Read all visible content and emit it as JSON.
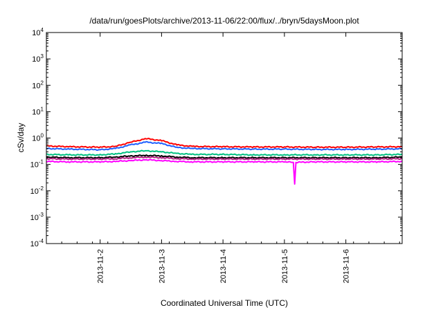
{
  "chart_data": {
    "type": "line",
    "title": "/data/run/goesPlots/archive/2013-11-06/22:00/flux/../bryn/5daysMoon.plot",
    "xlabel": "Coordinated Universal Time (UTC)",
    "ylabel": "cSv/day",
    "yscale": "log",
    "ylim": [
      0.0001,
      10000
    ],
    "xlim": [
      "2013-11-01T03:00",
      "2013-11-06T22:00"
    ],
    "grid": false,
    "legend": "none",
    "x_ticks": [
      {
        "date": "2013-11-02T00:00",
        "label": "2013-11-2"
      },
      {
        "date": "2013-11-03T00:00",
        "label": "2013-11-3"
      },
      {
        "date": "2013-11-04T00:00",
        "label": "2013-11-4"
      },
      {
        "date": "2013-11-05T00:00",
        "label": "2013-11-5"
      },
      {
        "date": "2013-11-06T00:00",
        "label": "2013-11-6"
      }
    ],
    "y_ticks": [
      {
        "value": 0.0001,
        "base": "10",
        "exp": "-4"
      },
      {
        "value": 0.001,
        "base": "10",
        "exp": "-3"
      },
      {
        "value": 0.01,
        "base": "10",
        "exp": "-2"
      },
      {
        "value": 0.1,
        "base": "10",
        "exp": "-1"
      },
      {
        "value": 1,
        "base": "10",
        "exp": "0"
      },
      {
        "value": 10,
        "base": "10",
        "exp": "1"
      },
      {
        "value": 100,
        "base": "10",
        "exp": "2"
      },
      {
        "value": 1000,
        "base": "10",
        "exp": "3"
      },
      {
        "value": 10000,
        "base": "10",
        "exp": "4"
      }
    ],
    "series": [
      {
        "color": "#ff0000",
        "x": [
          "2013-11-01T03:00",
          "2013-11-01T12:00",
          "2013-11-02T00:00",
          "2013-11-02T06:00",
          "2013-11-02T12:00",
          "2013-11-02T18:00",
          "2013-11-03T00:00",
          "2013-11-03T06:00",
          "2013-11-03T12:00",
          "2013-11-04T00:00",
          "2013-11-04T12:00",
          "2013-11-05T00:00",
          "2013-11-05T12:00",
          "2013-11-06T00:00",
          "2013-11-06T12:00",
          "2013-11-06T22:00"
        ],
        "values": [
          0.5,
          0.47,
          0.45,
          0.48,
          0.7,
          0.95,
          0.8,
          0.55,
          0.48,
          0.47,
          0.46,
          0.46,
          0.45,
          0.45,
          0.46,
          0.47
        ]
      },
      {
        "color": "#1f5fff",
        "x": [
          "2013-11-01T03:00",
          "2013-11-01T12:00",
          "2013-11-02T00:00",
          "2013-11-02T06:00",
          "2013-11-02T12:00",
          "2013-11-02T18:00",
          "2013-11-03T00:00",
          "2013-11-03T06:00",
          "2013-11-03T12:00",
          "2013-11-04T00:00",
          "2013-11-04T12:00",
          "2013-11-05T00:00",
          "2013-11-05T12:00",
          "2013-11-06T00:00",
          "2013-11-06T12:00",
          "2013-11-06T22:00"
        ],
        "values": [
          0.4,
          0.38,
          0.36,
          0.4,
          0.55,
          0.7,
          0.62,
          0.44,
          0.4,
          0.39,
          0.38,
          0.38,
          0.37,
          0.37,
          0.38,
          0.39
        ]
      },
      {
        "color": "#00c080",
        "x": [
          "2013-11-01T03:00",
          "2013-11-01T12:00",
          "2013-11-02T00:00",
          "2013-11-02T06:00",
          "2013-11-02T12:00",
          "2013-11-02T18:00",
          "2013-11-03T00:00",
          "2013-11-03T06:00",
          "2013-11-03T12:00",
          "2013-11-04T00:00",
          "2013-11-04T12:00",
          "2013-11-05T00:00",
          "2013-11-05T12:00",
          "2013-11-06T00:00",
          "2013-11-06T12:00",
          "2013-11-06T22:00"
        ],
        "values": [
          0.24,
          0.23,
          0.23,
          0.25,
          0.3,
          0.33,
          0.3,
          0.26,
          0.24,
          0.24,
          0.23,
          0.23,
          0.23,
          0.23,
          0.23,
          0.24
        ]
      },
      {
        "color": "#000000",
        "x": [
          "2013-11-01T03:00",
          "2013-11-01T12:00",
          "2013-11-02T00:00",
          "2013-11-02T06:00",
          "2013-11-02T12:00",
          "2013-11-02T18:00",
          "2013-11-03T00:00",
          "2013-11-03T06:00",
          "2013-11-03T12:00",
          "2013-11-04T00:00",
          "2013-11-04T12:00",
          "2013-11-05T00:00",
          "2013-11-05T12:00",
          "2013-11-06T00:00",
          "2013-11-06T12:00",
          "2013-11-06T22:00"
        ],
        "values": [
          0.19,
          0.18,
          0.18,
          0.19,
          0.21,
          0.22,
          0.21,
          0.19,
          0.18,
          0.18,
          0.18,
          0.18,
          0.18,
          0.18,
          0.18,
          0.19
        ]
      },
      {
        "color": "#b02080",
        "x": [
          "2013-11-01T03:00",
          "2013-11-01T12:00",
          "2013-11-02T00:00",
          "2013-11-02T06:00",
          "2013-11-02T12:00",
          "2013-11-02T18:00",
          "2013-11-03T00:00",
          "2013-11-03T06:00",
          "2013-11-03T12:00",
          "2013-11-04T00:00",
          "2013-11-04T12:00",
          "2013-11-05T00:00",
          "2013-11-05T12:00",
          "2013-11-06T00:00",
          "2013-11-06T12:00",
          "2013-11-06T22:00"
        ],
        "values": [
          0.165,
          0.16,
          0.16,
          0.165,
          0.18,
          0.19,
          0.18,
          0.165,
          0.16,
          0.16,
          0.16,
          0.16,
          0.16,
          0.16,
          0.16,
          0.165
        ]
      },
      {
        "color": "#ff00ff",
        "x": [
          "2013-11-01T03:00",
          "2013-11-01T12:00",
          "2013-11-02T00:00",
          "2013-11-02T06:00",
          "2013-11-02T12:00",
          "2013-11-02T18:00",
          "2013-11-03T00:00",
          "2013-11-03T06:00",
          "2013-11-03T12:00",
          "2013-11-04T00:00",
          "2013-11-04T12:00",
          "2013-11-05T00:00",
          "2013-11-05T03:30",
          "2013-11-05T04:00",
          "2013-11-05T04:30",
          "2013-11-05T12:00",
          "2013-11-06T00:00",
          "2013-11-06T12:00",
          "2013-11-06T22:00"
        ],
        "values": [
          0.13,
          0.125,
          0.125,
          0.13,
          0.14,
          0.15,
          0.14,
          0.13,
          0.125,
          0.125,
          0.125,
          0.125,
          0.12,
          0.018,
          0.12,
          0.125,
          0.125,
          0.125,
          0.13
        ]
      }
    ]
  }
}
